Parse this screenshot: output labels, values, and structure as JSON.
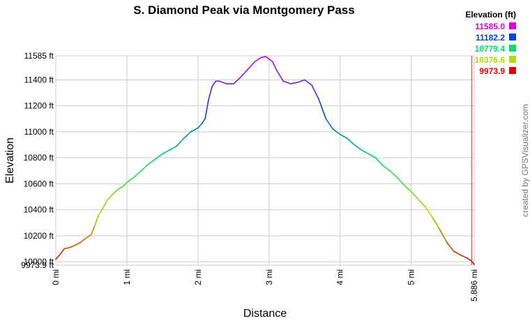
{
  "chart_data": {
    "type": "line",
    "title": "S. Diamond Peak via Montgomery Pass",
    "xlabel": "Distance",
    "ylabel": "Elevation",
    "xlim": [
      0,
      5.886
    ],
    "ylim": [
      9973.9,
      11585
    ],
    "x_ticks": [
      {
        "value": 0,
        "label": "0 mi"
      },
      {
        "value": 1,
        "label": "1 mi"
      },
      {
        "value": 2,
        "label": "2 mi"
      },
      {
        "value": 3,
        "label": "3 mi"
      },
      {
        "value": 4,
        "label": "4 mi"
      },
      {
        "value": 5,
        "label": "5 mi"
      },
      {
        "value": 5.886,
        "label": "5.886 mi"
      }
    ],
    "y_ticks": [
      {
        "value": 9973.9,
        "label": "9973.9 ft"
      },
      {
        "value": 10000,
        "label": "10000 ft"
      },
      {
        "value": 10200,
        "label": "10200 ft"
      },
      {
        "value": 10400,
        "label": "10400 ft"
      },
      {
        "value": 10600,
        "label": "10600 ft"
      },
      {
        "value": 10800,
        "label": "10800 ft"
      },
      {
        "value": 11000,
        "label": "11000 ft"
      },
      {
        "value": 11200,
        "label": "11200 ft"
      },
      {
        "value": 11400,
        "label": "11400 ft"
      },
      {
        "value": 11585,
        "label": "11585 ft"
      }
    ],
    "grid": true,
    "marker_x": 5.85,
    "legend": {
      "title": "Elevation (ft)",
      "placement": "top-right",
      "entries": [
        {
          "label": "11585.0",
          "color": "#dd00dd"
        },
        {
          "label": "11182.2",
          "color": "#0044dd"
        },
        {
          "label": "10779.4",
          "color": "#00dd66"
        },
        {
          "label": "10376.6",
          "color": "#aadd00"
        },
        {
          "label": "9973.9",
          "color": "#dd0000"
        }
      ]
    },
    "series": [
      {
        "x": [
          0,
          0.05,
          0.12,
          0.2,
          0.28,
          0.35,
          0.42,
          0.5,
          0.55,
          0.6,
          0.65,
          0.72,
          0.8,
          0.88,
          0.95,
          1.0,
          1.05,
          1.1,
          1.2,
          1.3,
          1.4,
          1.5,
          1.6,
          1.7,
          1.8,
          1.9,
          2.0,
          2.05,
          2.1,
          2.15,
          2.2,
          2.25,
          2.3,
          2.4,
          2.5,
          2.6,
          2.7,
          2.8,
          2.88,
          2.95,
          3.0,
          3.05,
          3.1,
          3.2,
          3.3,
          3.4,
          3.5,
          3.6,
          3.7,
          3.8,
          3.9,
          4.0,
          4.1,
          4.2,
          4.3,
          4.4,
          4.5,
          4.6,
          4.7,
          4.8,
          4.9,
          5.0,
          5.1,
          5.2,
          5.3,
          5.4,
          5.5,
          5.6,
          5.7,
          5.78,
          5.84,
          5.886
        ],
        "y": [
          10020,
          10050,
          10100,
          10110,
          10130,
          10150,
          10180,
          10210,
          10280,
          10360,
          10400,
          10470,
          10520,
          10560,
          10580,
          10610,
          10630,
          10650,
          10700,
          10750,
          10790,
          10830,
          10860,
          10890,
          10950,
          11000,
          11030,
          11060,
          11100,
          11250,
          11350,
          11390,
          11390,
          11370,
          11370,
          11420,
          11480,
          11540,
          11570,
          11580,
          11560,
          11540,
          11480,
          11390,
          11370,
          11380,
          11400,
          11360,
          11250,
          11100,
          11020,
          10980,
          10950,
          10900,
          10860,
          10830,
          10800,
          10740,
          10700,
          10650,
          10590,
          10540,
          10480,
          10420,
          10340,
          10250,
          10150,
          10080,
          10050,
          10030,
          10010,
          9980
        ]
      }
    ]
  },
  "credit": "created by GPSVisualizer.com"
}
